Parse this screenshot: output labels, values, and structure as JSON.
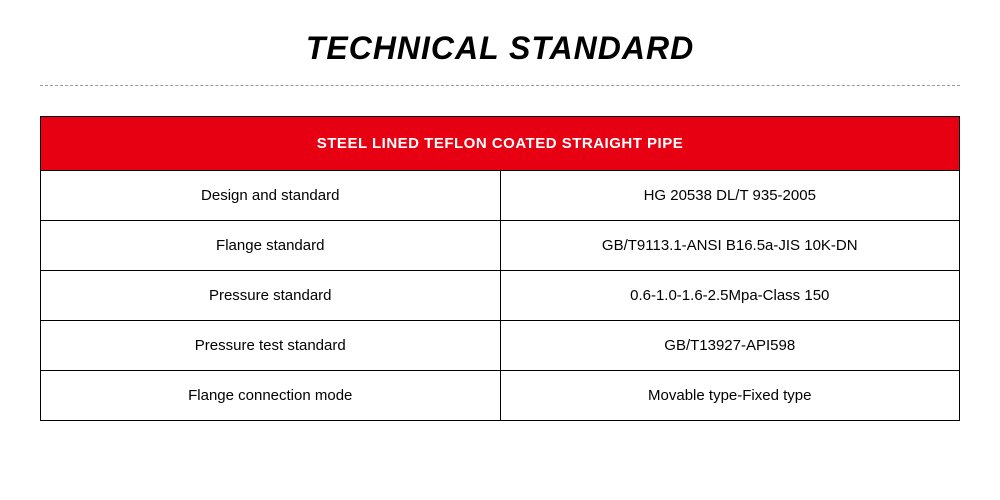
{
  "title": "TECHNICAL STANDARD",
  "table": {
    "header": "STEEL LINED TEFLON COATED STRAIGHT PIPE",
    "header_bg_color": "#e60012",
    "header_text_color": "#ffffff",
    "border_color": "#000000",
    "cell_text_color": "#000000",
    "title_fontsize": 32,
    "header_fontsize": 15,
    "cell_fontsize": 15,
    "rows": [
      {
        "label": "Design and standard",
        "value": "HG 20538 DL/T 935-2005"
      },
      {
        "label": "Flange standard",
        "value": "GB/T9113.1-ANSI B16.5a-JIS 10K-DN"
      },
      {
        "label": "Pressure standard",
        "value": "0.6-1.0-1.6-2.5Mpa-Class 150"
      },
      {
        "label": "Pressure test standard",
        "value": "GB/T13927-API598"
      },
      {
        "label": "Flange connection mode",
        "value": "Movable type-Fixed type"
      }
    ]
  },
  "divider_color": "#9a9a9a",
  "background_color": "#ffffff"
}
